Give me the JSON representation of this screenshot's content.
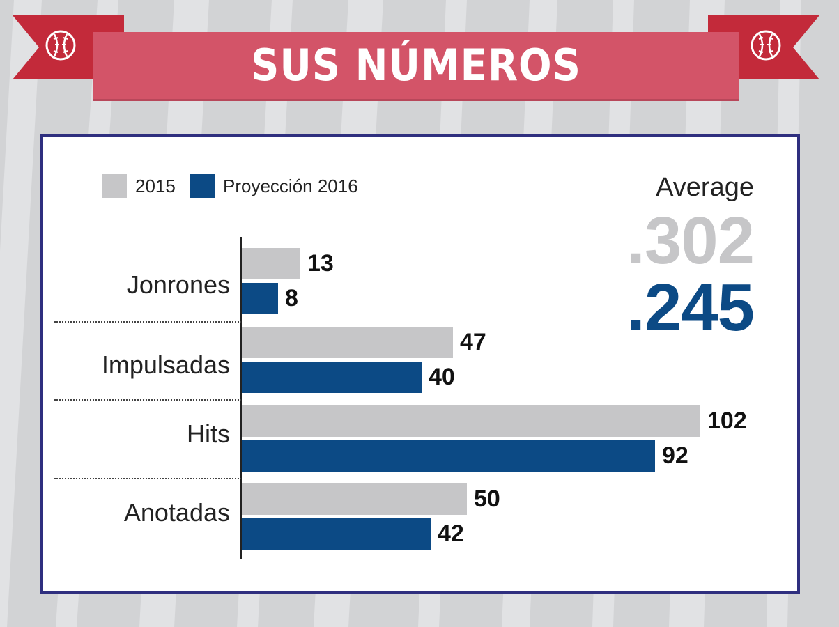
{
  "header": {
    "title": "SUS NÚMEROS"
  },
  "legend": [
    {
      "label": "2015",
      "color": "#c6c6c8"
    },
    {
      "label": "Proyección 2016",
      "color": "#0c4a85"
    }
  ],
  "average": {
    "label": "Average",
    "value_2015": ".302",
    "value_2016": ".245"
  },
  "chart_data": {
    "type": "bar",
    "orientation": "horizontal",
    "categories": [
      "Jonrones",
      "Impulsadas",
      "Hits",
      "Anotadas"
    ],
    "series": [
      {
        "name": "2015",
        "values": [
          13,
          47,
          102,
          50
        ],
        "color": "#c6c6c8"
      },
      {
        "name": "Proyección 2016",
        "values": [
          8,
          40,
          92,
          42
        ],
        "color": "#0c4a85"
      }
    ],
    "xlim": [
      0,
      102
    ],
    "legend_position": "top-left",
    "grid": false
  }
}
